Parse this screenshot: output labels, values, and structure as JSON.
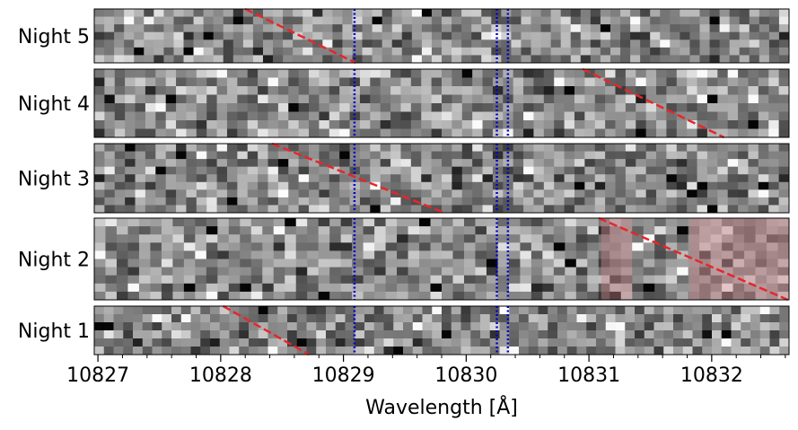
{
  "chart_data": {
    "type": "heatmap",
    "title": "",
    "xlabel": "Wavelength [Å]",
    "ylabel": "",
    "xlim": [
      10826.97,
      10832.63
    ],
    "x_ticks": [
      10827,
      10828,
      10829,
      10830,
      10831,
      10832
    ],
    "x_tick_labels": [
      "10827",
      "10828",
      "10829",
      "10830",
      "10831",
      "10832"
    ],
    "x_minor_tick_step": 0.2,
    "grid": false,
    "colormap": "grayscale",
    "panels": [
      {
        "label": "Night 5",
        "rows": 7,
        "cols": 70,
        "seed": 5,
        "trail": {
          "x": [
            10828.2,
            10829.1
          ],
          "frac": [
            0.0,
            1.0
          ]
        },
        "bands": []
      },
      {
        "label": "Night 4",
        "rows": 8,
        "cols": 68,
        "seed": 4,
        "trail": {
          "x": [
            10830.95,
            10832.1
          ],
          "frac": [
            0.0,
            1.0
          ]
        },
        "bands": []
      },
      {
        "label": "Night 3",
        "rows": 9,
        "cols": 68,
        "seed": 3,
        "trail": {
          "x": [
            10828.42,
            10829.82
          ],
          "frac": [
            0.0,
            1.0
          ]
        },
        "bands": []
      },
      {
        "label": "Night 2",
        "rows": 10,
        "cols": 62,
        "seed": 2,
        "trail": {
          "x": [
            10831.08,
            10832.62
          ],
          "frac": [
            0.0,
            1.0
          ]
        },
        "bands": [
          [
            10831.1,
            10831.35
          ],
          [
            10831.82,
            10832.63
          ]
        ]
      },
      {
        "label": "Night 1",
        "rows": 6,
        "cols": 72,
        "seed": 1,
        "trail": {
          "x": [
            10828.02,
            10828.72
          ],
          "frac": [
            0.0,
            1.0
          ]
        },
        "bands": []
      }
    ],
    "reference_lines": [
      10829.09,
      10830.25,
      10830.34
    ],
    "colors": {
      "trail": "#e8262a",
      "reference": "#0000cc",
      "band": "#c8868a"
    }
  }
}
